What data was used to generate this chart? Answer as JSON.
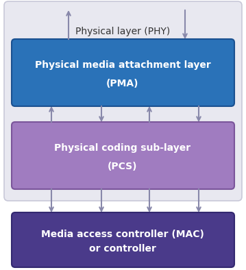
{
  "bg_color": "#ffffff",
  "outer_box_facecolor": "#e8e8f0",
  "outer_box_edgecolor": "#c8c8d8",
  "pma_color": "#2a72b8",
  "pma_edge": "#1a5090",
  "pma_text1": "Physical media attachment layer",
  "pma_text2": "(PMA)",
  "pcs_color": "#a07cc0",
  "pcs_edge": "#7a559a",
  "pcs_text1": "Physical coding sub-layer",
  "pcs_text2": "(PCS)",
  "mac_color": "#4a3a8a",
  "mac_edge": "#332870",
  "mac_text1": "Media access controller (MAC)",
  "mac_text2": "or controller",
  "phy_label": "Physical layer (PHY)",
  "phy_text_color": "#333333",
  "arrow_color": "#8888aa",
  "fig_width": 3.59,
  "fig_height": 3.94,
  "dpi": 100
}
